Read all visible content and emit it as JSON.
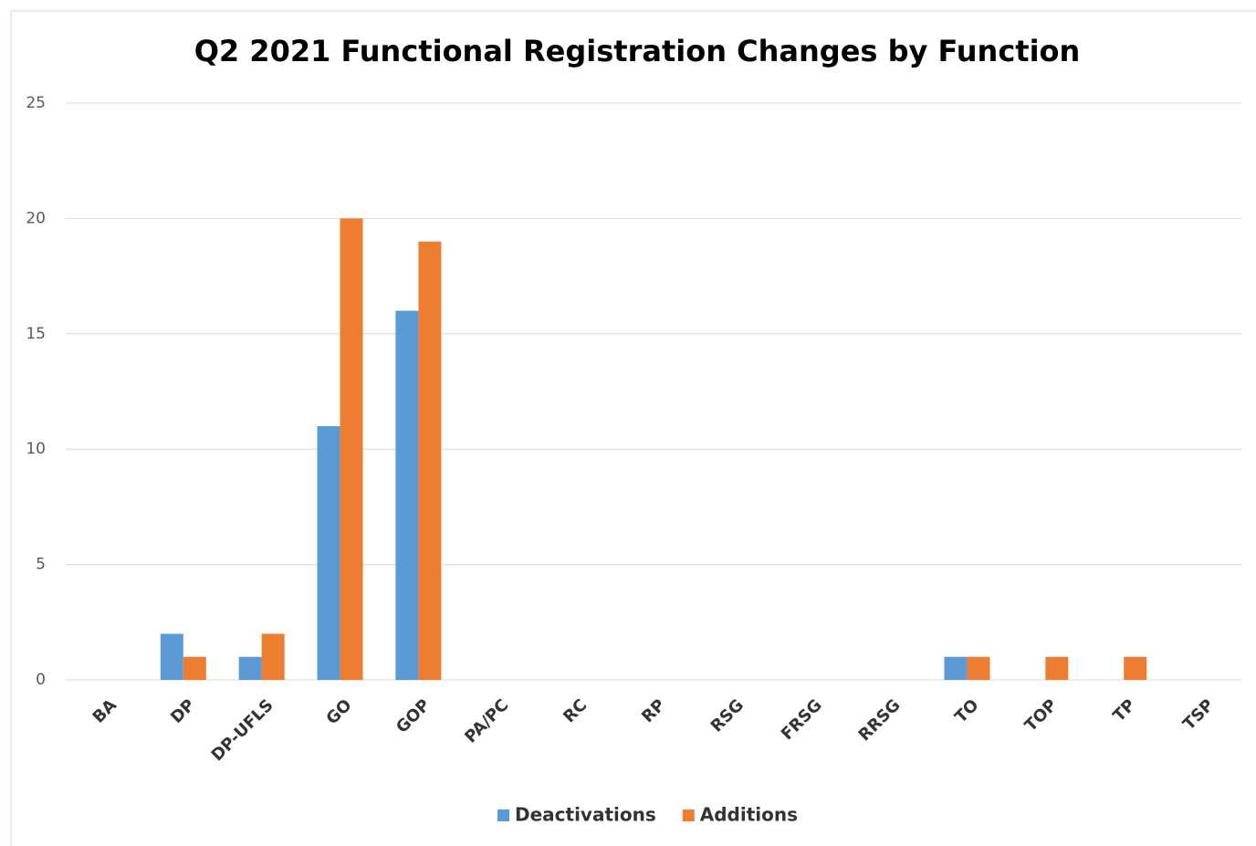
{
  "chart_data": {
    "type": "bar",
    "title": "Q2 2021 Functional Registration Changes by Function",
    "categories": [
      "BA",
      "DP",
      "DP-UFLS",
      "GO",
      "GOP",
      "PA/PC",
      "RC",
      "RP",
      "RSG",
      "FRSG",
      "RRSG",
      "TO",
      "TOP",
      "TP",
      "TSP"
    ],
    "series": [
      {
        "name": "Deactivations",
        "color": "#5b9bd5",
        "values": [
          0,
          2,
          1,
          11,
          16,
          0,
          0,
          0,
          0,
          0,
          0,
          1,
          0,
          0,
          0
        ]
      },
      {
        "name": "Additions",
        "color": "#ed7d31",
        "values": [
          0,
          1,
          2,
          20,
          19,
          0,
          0,
          0,
          0,
          0,
          0,
          1,
          1,
          1,
          0
        ]
      }
    ],
    "ylim": [
      0,
      25
    ],
    "yticks": [
      0,
      5,
      10,
      15,
      20,
      25
    ],
    "grid": true,
    "legend": "bottom"
  }
}
